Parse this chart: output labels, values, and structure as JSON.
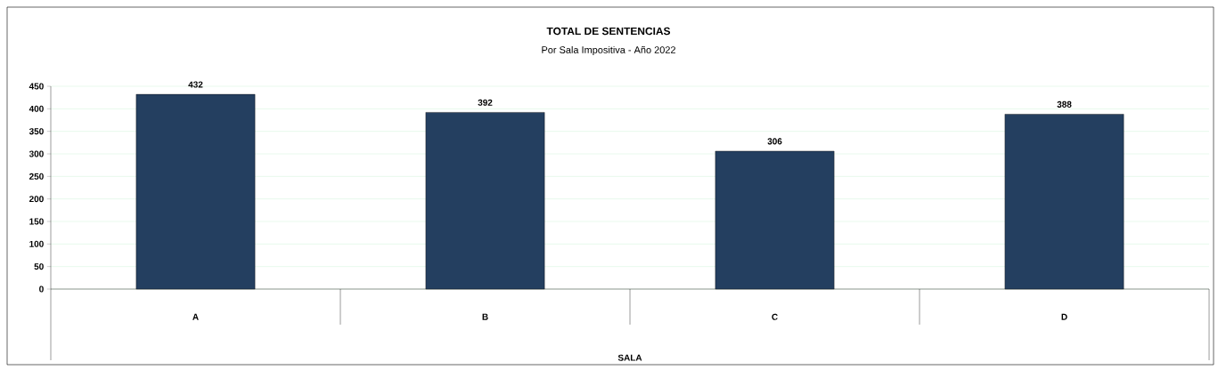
{
  "chart_data": {
    "type": "bar",
    "title": "TOTAL DE SENTENCIAS",
    "subtitle": "Por Sala Impositiva - Año 2022",
    "xlabel": "SALA",
    "categories": [
      "A",
      "B",
      "C",
      "D"
    ],
    "values": [
      432,
      392,
      306,
      388
    ],
    "color": "#243f60",
    "ylim": [
      0,
      450
    ],
    "yticks": [
      0,
      50,
      100,
      150,
      200,
      250,
      300,
      350,
      400,
      450
    ],
    "grid": "y",
    "data_labels": true
  }
}
